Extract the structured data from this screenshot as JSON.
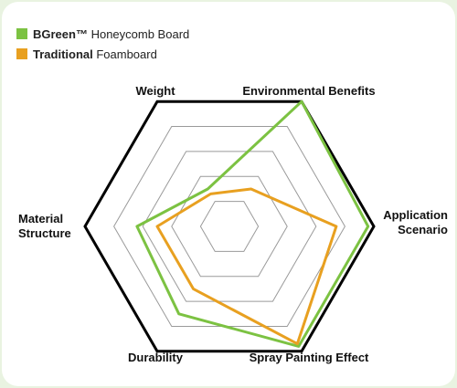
{
  "chart_data": {
    "type": "radar",
    "title": "",
    "axes": [
      "Weight",
      "Environmental Benefits",
      "Application Scenario",
      "Spray Painting Effect",
      "Durability",
      "Material Structure"
    ],
    "axis_label_lines": [
      [
        "Weight"
      ],
      [
        "Environmental Benefits"
      ],
      [
        "Application",
        "Scenario"
      ],
      [
        "Spray Painting Effect"
      ],
      [
        "Durability"
      ],
      [
        "Material",
        "Structure"
      ]
    ],
    "range": [
      0,
      5
    ],
    "rings": 5,
    "grid": true,
    "legend_position": "top-left",
    "series": [
      {
        "name_bold": "BGreen™",
        "name_rest": " Honeycomb Board",
        "color": "#7cc242",
        "values": [
          1.5,
          5.0,
          4.8,
          4.8,
          3.5,
          3.2
        ]
      },
      {
        "name_bold": "Traditional",
        "name_rest": " Foamboard",
        "color": "#e8a020",
        "values": [
          1.3,
          1.5,
          3.7,
          4.7,
          2.5,
          2.5
        ]
      }
    ]
  }
}
